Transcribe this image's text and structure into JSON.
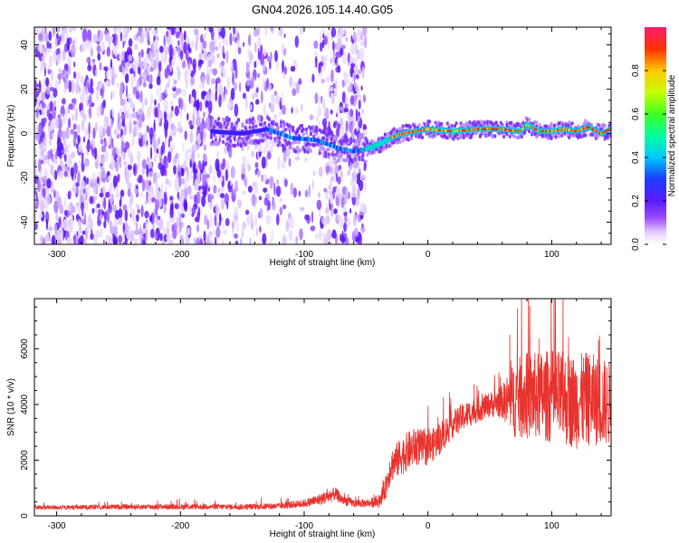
{
  "chart_data": [
    {
      "type": "heatmap",
      "title": "GN04.2026.105.14.40.G05",
      "xlabel": "Height of straight line (km)",
      "ylabel": "Frequency (Hz)",
      "xlim": [
        -318,
        148
      ],
      "ylim": [
        -50,
        48
      ],
      "xticks": [
        -300,
        -200,
        -100,
        0,
        100
      ],
      "xtick_labels": [
        "-300",
        "-200",
        "-100",
        "0",
        "100"
      ],
      "yticks": [
        -40,
        -20,
        0,
        20,
        40
      ],
      "ytick_labels": [
        "-40",
        "-20",
        "0",
        "20",
        "40"
      ],
      "colorbar": {
        "label": "Normalized spectral amplitude",
        "range": [
          0,
          1
        ],
        "ticks": [
          0.0,
          0.2,
          0.4,
          0.6,
          0.8
        ],
        "tick_labels": [
          "0.0",
          "0.2",
          "0.4",
          "0.6",
          "0.8"
        ],
        "colormap": "rainbow-purple-to-red"
      },
      "dominant_frequency_trace": {
        "x": [
          -175,
          -150,
          -130,
          -110,
          -90,
          -70,
          -60,
          -50,
          -40,
          -30,
          -20,
          -10,
          0,
          20,
          40,
          60,
          75,
          80,
          90,
          100,
          110,
          120,
          130,
          140,
          148
        ],
        "y": [
          1,
          0,
          2,
          -2,
          -3,
          -7,
          -8,
          -7,
          -5,
          -2,
          0,
          1,
          2,
          1,
          2,
          2,
          1,
          4,
          1,
          1,
          2,
          1,
          3,
          0,
          2
        ]
      },
      "notes_regions": {
        "broadband_noise_x_range": [
          -318,
          -50
        ],
        "clean_line_x_range": [
          -50,
          148
        ]
      }
    },
    {
      "type": "line",
      "title": "",
      "xlabel": "Height of straight line (km)",
      "ylabel": "SNR (10 * v/v)",
      "xlim": [
        -318,
        148
      ],
      "ylim": [
        0,
        7800
      ],
      "xticks": [
        -300,
        -200,
        -100,
        0,
        100
      ],
      "xtick_labels": [
        "-300",
        "-200",
        "-100",
        "0",
        "100"
      ],
      "yticks": [
        0,
        2000,
        4000,
        6000
      ],
      "ytick_labels": [
        "0",
        "2000",
        "4000",
        "6000"
      ],
      "color": "#e8322d",
      "series": [
        {
          "name": "SNR",
          "x": [
            -318,
            -300,
            -250,
            -200,
            -150,
            -120,
            -100,
            -90,
            -80,
            -75,
            -70,
            -60,
            -50,
            -40,
            -35,
            -30,
            -20,
            -10,
            0,
            10,
            20,
            30,
            40,
            50,
            60,
            70,
            80,
            90,
            100,
            110,
            120,
            130,
            140,
            148
          ],
          "values": [
            300,
            300,
            320,
            330,
            320,
            350,
            450,
            550,
            700,
            800,
            600,
            450,
            450,
            500,
            900,
            1800,
            2200,
            2500,
            2400,
            2800,
            3300,
            3600,
            3800,
            4000,
            4100,
            4200,
            4300,
            4300,
            4300,
            4200,
            4100,
            4200,
            4100,
            4000
          ],
          "spread": [
            80,
            80,
            90,
            100,
            100,
            120,
            150,
            200,
            250,
            250,
            200,
            150,
            150,
            200,
            400,
            600,
            700,
            700,
            600,
            600,
            500,
            500,
            450,
            450,
            600,
            1400,
            1600,
            1600,
            1700,
            1700,
            1700,
            1700,
            1600,
            1500
          ]
        }
      ]
    }
  ]
}
